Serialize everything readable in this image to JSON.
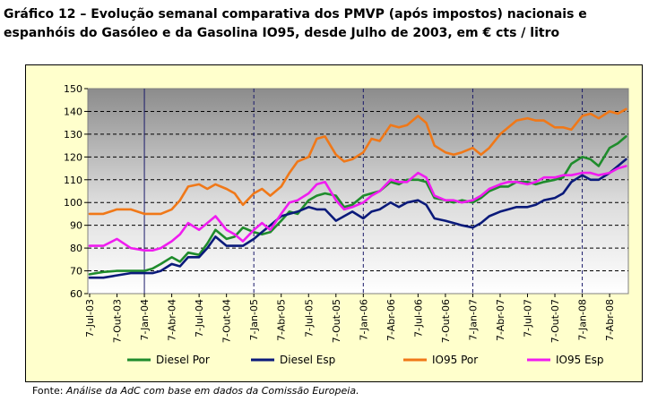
{
  "title": {
    "line1": "Gráfico 12 – Evolução semanal comparativa dos PMVP (após impostos) nacionais e",
    "line2": "espanhóis do Gasóleo e da Gasolina IO95, desde Julho de 2003, em € cts / litro"
  },
  "source": {
    "prefix": "Fonte: ",
    "text": "Análise da AdC com base em dados da Comissão Europeia."
  },
  "chart_data": {
    "type": "line",
    "ylim": [
      60,
      150
    ],
    "yticks": [
      60,
      70,
      80,
      90,
      100,
      110,
      120,
      130,
      140,
      150
    ],
    "x_tick_labels": [
      "7-Jul-03",
      "7-Out-03",
      "7-Jan-04",
      "7-Abr-04",
      "7-Jul-04",
      "7-Out-04",
      "7-Jan-05",
      "7-Abr-05",
      "7-Jul-05",
      "7-Out-05",
      "7-Jan-06",
      "7-Abr-06",
      "7-Jul-06",
      "7-Out-06",
      "7-Jan-07",
      "7-Abr-07",
      "7-Jul-07",
      "7-Out-07",
      "7-Jan-08",
      "7-Abr-08"
    ],
    "year_marker_ticks": [
      2,
      6,
      10,
      14,
      18
    ],
    "grid": true,
    "series": [
      {
        "name": "Diesel Por",
        "color": "#1f8c2c",
        "x": [
          0,
          0.5,
          1,
          1.5,
          2,
          2.3,
          2.6,
          3,
          3.3,
          3.6,
          4,
          4.3,
          4.6,
          5,
          5.3,
          5.6,
          6,
          6.3,
          6.6,
          7,
          7.3,
          7.6,
          8,
          8.3,
          8.6,
          9,
          9.3,
          9.6,
          10,
          10.3,
          10.6,
          11,
          11.3,
          11.6,
          12,
          12.3,
          12.6,
          13,
          13.3,
          13.6,
          14,
          14.3,
          14.6,
          15,
          15.3,
          15.6,
          16,
          16.3,
          16.6,
          17,
          17.3,
          17.6,
          18,
          18.3,
          18.6,
          19,
          19.3,
          19.6
        ],
        "values": [
          68.5,
          69.5,
          70,
          70,
          70,
          71,
          73,
          76,
          74,
          78,
          77,
          82,
          88,
          84,
          85,
          89,
          87,
          86,
          87,
          92,
          96,
          95,
          101,
          103,
          104,
          103,
          98,
          99,
          103,
          104,
          105,
          109,
          108,
          110,
          110,
          109,
          102,
          101,
          100,
          101,
          100,
          102,
          105,
          107,
          107,
          109,
          109,
          108,
          109,
          110,
          111,
          117,
          120,
          119,
          116,
          124,
          126,
          129
        ]
      },
      {
        "name": "Diesel Esp",
        "color": "#0a1a7a",
        "x": [
          0,
          0.5,
          1,
          1.5,
          2,
          2.3,
          2.6,
          3,
          3.3,
          3.6,
          4,
          4.3,
          4.6,
          5,
          5.3,
          5.6,
          6,
          6.3,
          6.6,
          7,
          7.3,
          7.6,
          8,
          8.3,
          8.6,
          9,
          9.3,
          9.6,
          10,
          10.3,
          10.6,
          11,
          11.3,
          11.6,
          12,
          12.3,
          12.6,
          13,
          13.3,
          13.6,
          14,
          14.3,
          14.6,
          15,
          15.3,
          15.6,
          16,
          16.3,
          16.6,
          17,
          17.3,
          17.6,
          18,
          18.3,
          18.6,
          19,
          19.3,
          19.6
        ],
        "values": [
          67,
          67,
          68,
          69,
          69,
          69,
          70,
          73,
          72,
          76,
          76,
          80,
          85,
          81,
          81,
          81,
          84,
          87,
          90,
          94,
          95,
          96,
          98,
          97,
          97,
          92,
          94,
          96,
          93,
          96,
          97,
          100,
          98,
          100,
          101,
          99,
          93,
          92,
          91,
          90,
          89,
          91,
          94,
          96,
          97,
          98,
          98,
          99,
          101,
          102,
          104,
          109,
          112,
          110,
          110,
          113,
          116,
          119
        ]
      },
      {
        "name": "IO95 Por",
        "color": "#f07818",
        "x": [
          0,
          0.5,
          1,
          1.5,
          2,
          2.3,
          2.6,
          3,
          3.3,
          3.6,
          4,
          4.3,
          4.6,
          5,
          5.3,
          5.6,
          6,
          6.3,
          6.6,
          7,
          7.3,
          7.6,
          8,
          8.3,
          8.6,
          9,
          9.3,
          9.6,
          10,
          10.3,
          10.6,
          11,
          11.3,
          11.6,
          12,
          12.3,
          12.6,
          13,
          13.3,
          13.6,
          14,
          14.3,
          14.6,
          15,
          15.3,
          15.6,
          16,
          16.3,
          16.6,
          17,
          17.3,
          17.6,
          18,
          18.3,
          18.6,
          19,
          19.3,
          19.6
        ],
        "values": [
          95,
          95,
          97,
          97,
          95,
          95,
          95,
          97,
          101,
          107,
          108,
          106,
          108,
          106,
          104,
          99,
          104,
          106,
          103,
          107,
          113,
          118,
          120,
          128,
          129,
          121,
          118,
          119,
          122,
          128,
          127,
          134,
          133,
          134,
          138,
          135,
          125,
          122,
          121,
          122,
          124,
          121,
          124,
          130,
          133,
          136,
          137,
          136,
          136,
          133,
          133,
          132,
          138,
          139,
          137,
          140,
          139,
          141
        ]
      },
      {
        "name": "IO95 Esp",
        "color": "#f01cf0",
        "x": [
          0,
          0.5,
          1,
          1.5,
          2,
          2.3,
          2.6,
          3,
          3.3,
          3.6,
          4,
          4.3,
          4.6,
          5,
          5.3,
          5.6,
          6,
          6.3,
          6.6,
          7,
          7.3,
          7.6,
          8,
          8.3,
          8.6,
          9,
          9.3,
          9.6,
          10,
          10.3,
          10.6,
          11,
          11.3,
          11.6,
          12,
          12.3,
          12.6,
          13,
          13.3,
          13.6,
          14,
          14.3,
          14.6,
          15,
          15.3,
          15.6,
          16,
          16.3,
          16.6,
          17,
          17.3,
          17.6,
          18,
          18.3,
          18.6,
          19,
          19.3,
          19.6
        ],
        "values": [
          81,
          81,
          84,
          80,
          79,
          79,
          80,
          83,
          86,
          91,
          88,
          91,
          94,
          88,
          86,
          83,
          88,
          91,
          88,
          95,
          100,
          101,
          104,
          108,
          109,
          101,
          97,
          98,
          100,
          103,
          105,
          110,
          109,
          109,
          113,
          111,
          103,
          101,
          101,
          100,
          101,
          103,
          106,
          108,
          109,
          109,
          108,
          109,
          111,
          111,
          112,
          112,
          113,
          113,
          112,
          113,
          115,
          116
        ]
      }
    ]
  }
}
